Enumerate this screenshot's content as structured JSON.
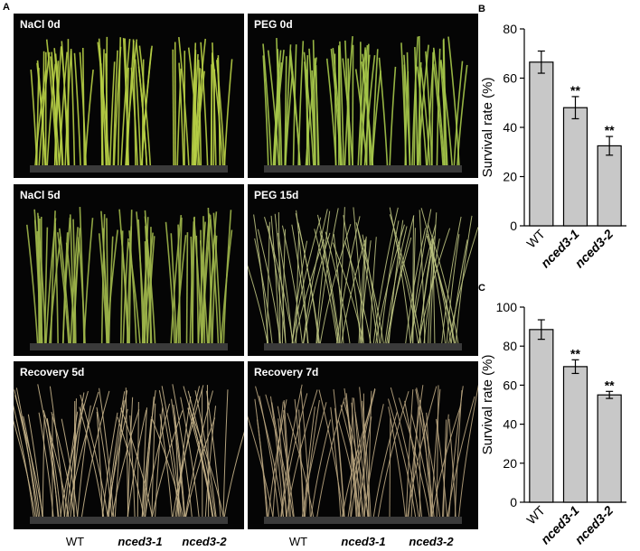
{
  "panel_a": {
    "letter": "A",
    "photos": [
      {
        "label": "NaCl 0d",
        "color": "#b7cf45"
      },
      {
        "label": "PEG 0d",
        "color": "#a6c84a"
      },
      {
        "label": "NaCl 5d",
        "color": "#9fb64a"
      },
      {
        "label": "PEG 15d",
        "color": "#b9c07e"
      },
      {
        "label": "Recovery 5d",
        "color": "#c5b38a"
      },
      {
        "label": "Recovery 7d",
        "color": "#b8a47e"
      }
    ],
    "x_labels": {
      "left": [
        "WT",
        "nced3-1",
        "nced3-2"
      ],
      "right": [
        "WT",
        "nced3-1",
        "nced3-2"
      ]
    }
  },
  "chart_data": [
    {
      "type": "bar",
      "panel": "B",
      "categories": [
        "WT",
        "nced3-1",
        "nced3-2"
      ],
      "values": [
        66.5,
        48,
        32.5
      ],
      "errors": [
        4.5,
        4.5,
        3.8
      ],
      "significance": [
        "",
        "**",
        "**"
      ],
      "ylabel": "Survival rate (%)",
      "xlabel": "",
      "ylim": [
        0,
        80
      ],
      "yticks": [
        0,
        20,
        40,
        60,
        80
      ],
      "bar_color": "#c8c8c8"
    },
    {
      "type": "bar",
      "panel": "C",
      "categories": [
        "WT",
        "nced3-1",
        "nced3-2"
      ],
      "values": [
        88.5,
        69.5,
        55
      ],
      "errors": [
        5,
        3.5,
        1.8
      ],
      "significance": [
        "",
        "**",
        "**"
      ],
      "ylabel": "Survival rate (%)",
      "xlabel": "",
      "ylim": [
        0,
        100
      ],
      "yticks": [
        0,
        20,
        40,
        60,
        80,
        100
      ],
      "bar_color": "#c8c8c8"
    }
  ]
}
